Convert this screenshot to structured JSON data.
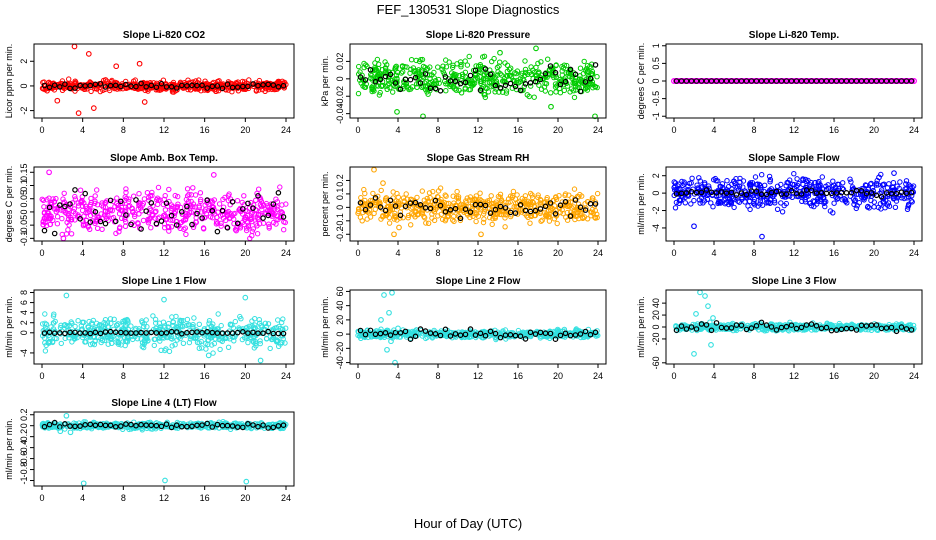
{
  "title": "FEF_130531  Slope Diagnostics",
  "xlabel": "Hour of Day (UTC)",
  "chart_data": [
    {
      "type": "scatter",
      "title": "Slope Li-820 CO2",
      "ylabel": "Licor ppm per min.",
      "xlim": [
        0,
        24
      ],
      "xticks": [
        0,
        4,
        8,
        12,
        16,
        20,
        24
      ],
      "ylim": [
        -2.6,
        3.4
      ],
      "yticks": [
        -2,
        0,
        2
      ],
      "color": "#ff0000",
      "spread": 0.35,
      "outliers": [
        [
          3.2,
          3.2
        ],
        [
          3.6,
          -2.2
        ],
        [
          4.6,
          2.6
        ],
        [
          5.1,
          -1.8
        ],
        [
          7.3,
          1.6
        ],
        [
          9.6,
          1.8
        ],
        [
          10.1,
          -1.3
        ],
        [
          1.5,
          -1.2
        ]
      ],
      "black_spread": 0.15
    },
    {
      "type": "scatter",
      "title": "Slope Li-820 Pressure",
      "ylabel": "kPa per min.",
      "xlim": [
        0,
        24
      ],
      "xticks": [
        0,
        4,
        8,
        12,
        16,
        20,
        24
      ],
      "ylim": [
        -0.045,
        0.04
      ],
      "yticks": [
        -0.04,
        -0.02,
        0.0,
        0.02
      ],
      "color": "#00cc00",
      "spread": 0.018,
      "outliers": [
        [
          6.5,
          -0.043
        ],
        [
          14.2,
          0.03
        ],
        [
          17.8,
          0.035
        ],
        [
          23.7,
          -0.043
        ],
        [
          3.9,
          -0.038
        ],
        [
          19.3,
          -0.032
        ]
      ],
      "black_spread": 0.012
    },
    {
      "type": "scatter",
      "title": "Slope Li-820 Temp.",
      "ylabel": "degrees C per min.",
      "xlim": [
        0,
        24
      ],
      "xticks": [
        0,
        4,
        8,
        12,
        16,
        20,
        24
      ],
      "ylim": [
        -1.05,
        1.05
      ],
      "yticks": [
        -1.0,
        -0.5,
        0.0,
        0.5,
        1.0
      ],
      "color": "#ff00ff",
      "spread": 0.0,
      "outliers": [],
      "black_spread": 0.0
    },
    {
      "type": "scatter",
      "title": "Slope Amb. Box Temp.",
      "ylabel": "degrees C per min.",
      "xlim": [
        0,
        24
      ],
      "xticks": [
        0,
        4,
        8,
        12,
        16,
        20,
        24
      ],
      "ylim": [
        -0.11,
        0.17
      ],
      "yticks": [
        -0.1,
        -0.05,
        0.0,
        0.05,
        0.1,
        0.15
      ],
      "color": "#ff00ff",
      "spread": 0.07,
      "outliers": [
        [
          0.7,
          0.15
        ],
        [
          2.1,
          -0.1
        ],
        [
          16.9,
          0.14
        ]
      ],
      "black_spread": 0.06
    },
    {
      "type": "scatter",
      "title": "Slope Gas Stream RH",
      "ylabel": "percent per min.",
      "xlim": [
        0,
        24
      ],
      "xticks": [
        0,
        4,
        8,
        12,
        16,
        20,
        24
      ],
      "ylim": [
        -0.25,
        0.3
      ],
      "yticks": [
        -0.2,
        -0.1,
        0.0,
        0.1,
        0.2
      ],
      "color": "#ffa500",
      "spread": 0.1,
      "outliers": [
        [
          1.6,
          0.28
        ],
        [
          3.6,
          -0.2
        ],
        [
          4.1,
          -0.15
        ],
        [
          12.3,
          -0.2
        ],
        [
          2.5,
          0.18
        ]
      ],
      "black_spread": 0.05
    },
    {
      "type": "scatter",
      "title": "Slope Sample Flow",
      "ylabel": "ml/min per min.",
      "xlim": [
        0,
        24
      ],
      "xticks": [
        0,
        4,
        8,
        12,
        16,
        20,
        24
      ],
      "ylim": [
        -5.5,
        3.0
      ],
      "yticks": [
        -4,
        -2,
        0,
        2
      ],
      "color": "#0000ff",
      "spread": 1.6,
      "outliers": [
        [
          8.8,
          -5.0
        ],
        [
          20.5,
          1.8
        ],
        [
          22.0,
          2.3
        ],
        [
          12.9,
          1.5
        ],
        [
          2.0,
          -3.8
        ]
      ],
      "black_spread": 0.3
    },
    {
      "type": "scatter",
      "title": "Slope Line 1 Flow",
      "ylabel": "ml/min per min.",
      "xlim": [
        0,
        24
      ],
      "xticks": [
        0,
        4,
        8,
        12,
        16,
        20,
        24
      ],
      "ylim": [
        -6.2,
        8.5
      ],
      "yticks": [
        -4,
        0,
        2,
        4,
        6,
        8
      ],
      "color": "#33e0e0",
      "spread": 2.6,
      "outliers": [
        [
          16.4,
          -4.5
        ],
        [
          21.5,
          -5.5
        ],
        [
          2.4,
          7.4
        ],
        [
          12.0,
          6.6
        ],
        [
          20.0,
          7.0
        ]
      ],
      "black_spread": 0.2
    },
    {
      "type": "scatter",
      "title": "Slope Line 2 Flow",
      "ylabel": "ml/min per min.",
      "xlim": [
        0,
        24
      ],
      "xticks": [
        0,
        4,
        8,
        12,
        16,
        20,
        24
      ],
      "ylim": [
        -42,
        62
      ],
      "yticks": [
        -40,
        -20,
        0,
        20,
        40,
        60
      ],
      "color": "#33e0e0",
      "spread": 5,
      "outliers": [
        [
          2.6,
          55
        ],
        [
          3.4,
          58
        ],
        [
          3.1,
          30
        ],
        [
          3.7,
          -40
        ],
        [
          2.9,
          -22
        ],
        [
          3.3,
          -10
        ],
        [
          2.3,
          20
        ],
        [
          4.0,
          8
        ]
      ],
      "black_spread": 6
    },
    {
      "type": "scatter",
      "title": "Slope Line 3 Flow",
      "ylabel": "ml/min per min.",
      "xlim": [
        0,
        24
      ],
      "xticks": [
        0,
        4,
        8,
        12,
        16,
        20,
        24
      ],
      "ylim": [
        -62,
        62
      ],
      "yticks": [
        -60,
        -20,
        0,
        20,
        40
      ],
      "color": "#33e0e0",
      "spread": 5,
      "outliers": [
        [
          2.6,
          58
        ],
        [
          3.1,
          52
        ],
        [
          3.4,
          35
        ],
        [
          2.0,
          -45
        ],
        [
          3.7,
          -30
        ],
        [
          2.2,
          22
        ],
        [
          3.9,
          15
        ]
      ],
      "black_spread": 6
    },
    {
      "type": "scatter",
      "title": "Slope Line 4 (LT) Flow",
      "ylabel": "ml/min per min.",
      "xlim": [
        0,
        24
      ],
      "xticks": [
        0,
        4,
        8,
        12,
        16,
        20,
        24
      ],
      "ylim": [
        -1.1,
        0.25
      ],
      "yticks": [
        -1.0,
        -0.8,
        -0.6,
        -0.4,
        -0.2,
        0.0,
        0.2
      ],
      "color": "#33e0e0",
      "spread": 0.05,
      "outliers": [
        [
          4.1,
          -1.05
        ],
        [
          12.1,
          -1.0
        ],
        [
          20.1,
          -1.02
        ],
        [
          2.4,
          0.18
        ],
        [
          1.8,
          -0.1
        ],
        [
          2.8,
          -0.12
        ]
      ],
      "black_spread": 0.04
    }
  ]
}
